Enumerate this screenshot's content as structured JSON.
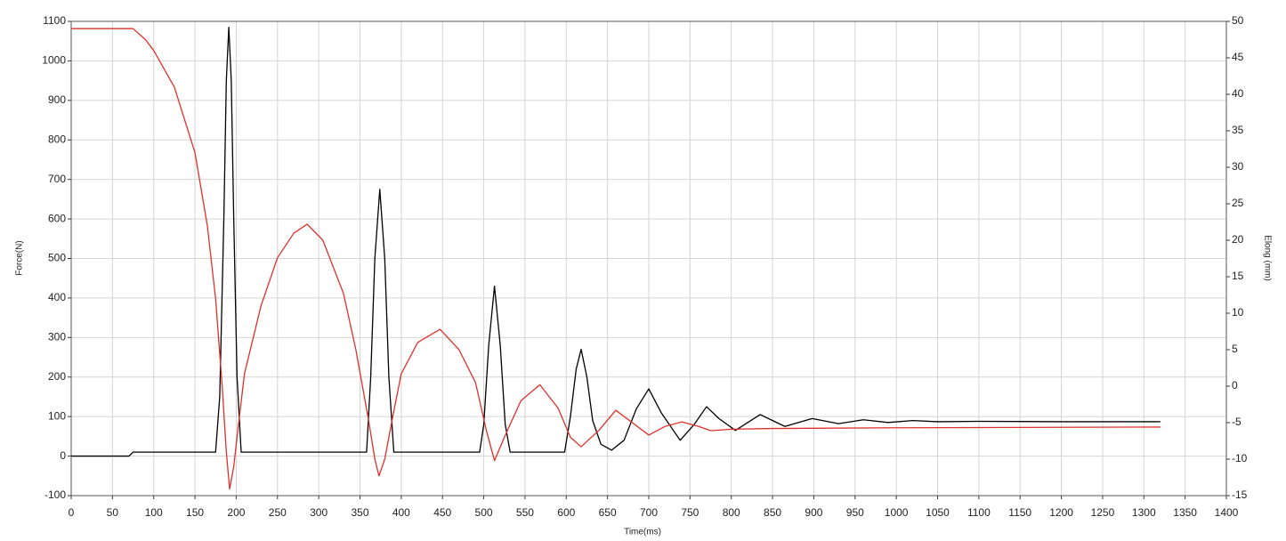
{
  "chart_data": {
    "type": "line",
    "xlabel": "Time(ms)",
    "ylabel": "Force(N)",
    "y2label": "Elong (mm)",
    "xlim": [
      0,
      1400
    ],
    "xticks": [
      0,
      50,
      100,
      150,
      200,
      250,
      300,
      350,
      400,
      450,
      500,
      550,
      600,
      650,
      700,
      750,
      800,
      850,
      900,
      950,
      1000,
      1050,
      1100,
      1150,
      1200,
      1250,
      1300,
      1350,
      1400
    ],
    "ylim": [
      -100,
      1100
    ],
    "yticks": [
      -100,
      0,
      100,
      200,
      300,
      400,
      500,
      600,
      700,
      800,
      900,
      1000,
      1100
    ],
    "y2lim": [
      -15,
      50
    ],
    "y2ticks": [
      -15,
      -10,
      -5,
      0,
      5,
      10,
      15,
      20,
      25,
      30,
      35,
      40,
      45,
      50
    ],
    "grid": true,
    "series": [
      {
        "color": "#000000",
        "axis": "y",
        "x": [
          0,
          70,
          75,
          175,
          180,
          185,
          188,
          191,
          194,
          197,
          201,
          206,
          358,
          363,
          368,
          374,
          380,
          385,
          391,
          495,
          500,
          506,
          513,
          520,
          526,
          532,
          598,
          605,
          612,
          618,
          625,
          632,
          642,
          655,
          670,
          685,
          700,
          715,
          738,
          755,
          770,
          785,
          805,
          820,
          835,
          850,
          865,
          898,
          930,
          960,
          990,
          1020,
          1050,
          1100,
          1200,
          1320
        ],
        "values": [
          0,
          0,
          10,
          10,
          150,
          600,
          950,
          1085,
          950,
          600,
          200,
          10,
          10,
          200,
          500,
          675,
          500,
          200,
          10,
          10,
          80,
          280,
          430,
          280,
          80,
          10,
          10,
          100,
          220,
          270,
          200,
          90,
          30,
          15,
          40,
          120,
          170,
          110,
          40,
          80,
          125,
          95,
          65,
          85,
          105,
          90,
          75,
          95,
          82,
          92,
          85,
          90,
          87,
          88,
          87,
          87
        ]
      },
      {
        "color": "#e0302a",
        "axis": "y2",
        "x": [
          0,
          75,
          90,
          100,
          125,
          150,
          165,
          175,
          183,
          188,
          192,
          197,
          203,
          210,
          230,
          250,
          270,
          286,
          305,
          330,
          345,
          360,
          368,
          373,
          380,
          390,
          400,
          420,
          447,
          470,
          490,
          503,
          513,
          525,
          545,
          568,
          590,
          605,
          618,
          640,
          660,
          680,
          700,
          720,
          740,
          760,
          775,
          800,
          850,
          1000,
          1320
        ],
        "values": [
          49,
          49,
          47.5,
          46,
          41,
          32,
          22,
          12,
          0,
          -9,
          -14.1,
          -11,
          -5,
          1.7,
          11,
          17.6,
          21,
          22.2,
          20,
          12.7,
          5,
          -4.4,
          -10,
          -12.3,
          -10,
          -4,
          1.7,
          6,
          7.8,
          5,
          0.5,
          -6,
          -10.2,
          -7,
          -2,
          0.2,
          -3,
          -7,
          -8.3,
          -6,
          -3.3,
          -5,
          -6.7,
          -5.5,
          -4.9,
          -5.5,
          -6.1,
          -5.9,
          -5.8,
          -5.7,
          -5.6
        ]
      }
    ]
  }
}
